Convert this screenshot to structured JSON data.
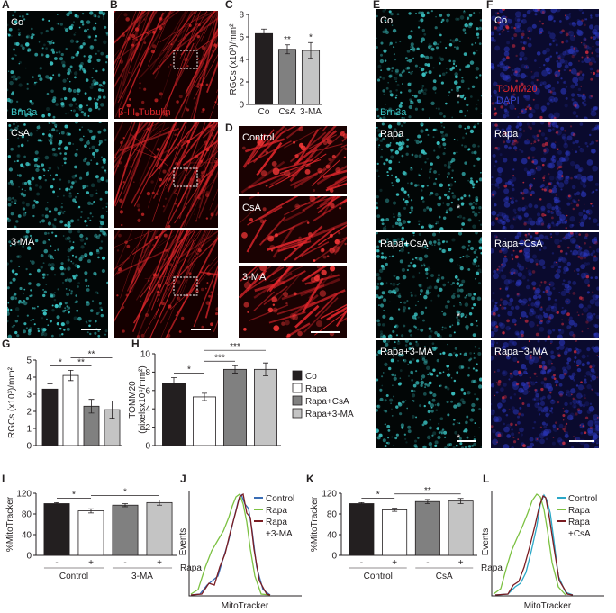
{
  "panels": [
    "A",
    "B",
    "C",
    "D",
    "E",
    "F",
    "G",
    "H",
    "I",
    "J",
    "K",
    "L"
  ],
  "images": {
    "A": {
      "labels": [
        "Co",
        "CsA",
        "3-MA"
      ],
      "stain": "Brn3a"
    },
    "B": {
      "stain": "β-III-Tubulin"
    },
    "D": {
      "labels": [
        "Control",
        "CsA",
        "3-MA"
      ]
    },
    "E": {
      "labels": [
        "Co",
        "Rapa",
        "Rapa+CsA",
        "Rapa+3-MA"
      ],
      "stain": "Brn3a",
      "marks": [
        "*",
        "*",
        "*",
        "*"
      ]
    },
    "F": {
      "labels": [
        "Co",
        "Rapa",
        "Rapa+CsA",
        "Rapa+3-MA"
      ],
      "stains": [
        "TOMM20",
        "DAPI"
      ]
    }
  },
  "chart_data": [
    {
      "type": "bar",
      "ylabel": [
        "RGCs (x10³)/mm²"
      ],
      "categories": [
        "Co",
        "CsA",
        "3-MA"
      ],
      "values": [
        6.3,
        4.9,
        4.8
      ],
      "errors": [
        0.4,
        0.4,
        0.7
      ],
      "colors": [
        "#231f20",
        "#808080",
        "#c4c4c4"
      ],
      "ylim": [
        0,
        8
      ],
      "yticks": [
        0,
        2,
        4,
        6,
        8
      ],
      "annotations": [
        "**",
        "*"
      ]
    },
    {
      "type": "bar",
      "ylabel": [
        "RGCs (x10³)/mm²"
      ],
      "values": [
        3.3,
        4.1,
        2.3,
        2.1
      ],
      "errors": [
        0.3,
        0.3,
        0.4,
        0.5
      ],
      "colors": [
        "#231f20",
        "#ffffff",
        "#808080",
        "#c4c4c4"
      ],
      "ylim": [
        0,
        5
      ],
      "yticks": [
        0,
        1,
        2,
        3,
        4,
        5
      ],
      "annotations": [
        "*",
        "**",
        "**"
      ]
    },
    {
      "type": "bar",
      "ylabel": [
        "TOMM20",
        "(pixelsx10⁴/mm²)"
      ],
      "values": [
        6.8,
        5.3,
        8.3,
        8.3
      ],
      "errors": [
        0.6,
        0.4,
        0.4,
        0.7
      ],
      "colors": [
        "#231f20",
        "#ffffff",
        "#808080",
        "#c4c4c4"
      ],
      "ylim": [
        0,
        10
      ],
      "yticks": [
        0,
        2,
        4,
        6,
        8,
        10
      ],
      "annotations": [
        "*",
        "***",
        "***"
      ],
      "legend": [
        "Co",
        "Rapa",
        "Rapa+CsA",
        "Rapa+3-MA"
      ]
    },
    {
      "type": "bar",
      "ylabel": [
        "%MitoTracker"
      ],
      "categories": [
        "-",
        "+",
        "-",
        "+"
      ],
      "groups": [
        "Control",
        "3-MA"
      ],
      "group_label": "Rapa",
      "values": [
        100,
        86,
        97,
        102
      ],
      "errors": [
        2,
        4,
        3,
        5
      ],
      "colors": [
        "#231f20",
        "#ffffff",
        "#808080",
        "#c4c4c4"
      ],
      "ylim": [
        0,
        120
      ],
      "yticks": [
        0,
        40,
        80,
        120
      ],
      "annotations": [
        "*",
        "*"
      ]
    },
    {
      "type": "bar",
      "ylabel": [
        "%MitoTracker"
      ],
      "categories": [
        "-",
        "+",
        "-",
        "+"
      ],
      "groups": [
        "Control",
        "CsA"
      ],
      "group_label": "Rapa",
      "values": [
        100,
        88,
        104,
        105
      ],
      "errors": [
        2,
        3,
        4,
        5
      ],
      "colors": [
        "#231f20",
        "#ffffff",
        "#808080",
        "#c4c4c4"
      ],
      "ylim": [
        0,
        120
      ],
      "yticks": [
        0,
        40,
        80,
        120
      ],
      "annotations": [
        "*",
        "**"
      ]
    },
    {
      "type": "histogram",
      "ylabel": "Events",
      "xlabel": "MitoTracker",
      "series": [
        {
          "name": [
            "Control"
          ],
          "color": "#3a6db5"
        },
        {
          "name": [
            "Rapa"
          ],
          "color": "#7cc142"
        },
        {
          "name": [
            "Rapa",
            "+3-MA"
          ],
          "color": "#7a1c22"
        }
      ]
    },
    {
      "type": "histogram",
      "ylabel": "Events",
      "xlabel": "MitoTracker",
      "series": [
        {
          "name": [
            "Control"
          ],
          "color": "#2aa7c7"
        },
        {
          "name": [
            "Rapa"
          ],
          "color": "#7cc142"
        },
        {
          "name": [
            "Rapa",
            "+CsA"
          ],
          "color": "#7a1c22"
        }
      ]
    }
  ]
}
